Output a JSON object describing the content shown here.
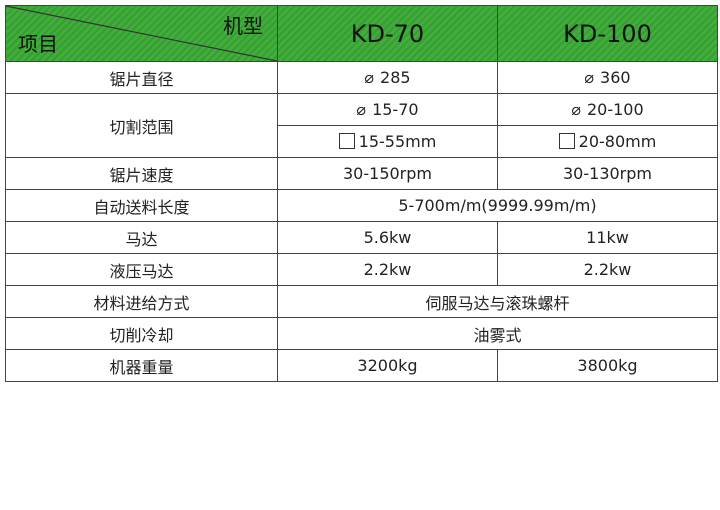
{
  "header": {
    "item_label": "项目",
    "model_label": "机型",
    "models": [
      "KD-70",
      "KD-100"
    ]
  },
  "colors": {
    "header_bg": "#3fae3a"
  },
  "rows": {
    "blade_diameter": {
      "label": "锯片直径",
      "values": [
        "285",
        "360"
      ]
    },
    "cutting_range": {
      "label": "切割范围",
      "round": [
        "15-70",
        "20-100"
      ],
      "square": [
        "15-55mm",
        "20-80mm"
      ]
    },
    "blade_speed": {
      "label": "锯片速度",
      "values": [
        "30-150rpm",
        "30-130rpm"
      ]
    },
    "auto_feed_length": {
      "label": "自动送料长度",
      "value": "5-700m/m(9999.99m/m)"
    },
    "motor": {
      "label": "马达",
      "values": [
        "5.6kw",
        "11kw"
      ]
    },
    "hydraulic_motor": {
      "label": "液压马达",
      "values": [
        "2.2kw",
        "2.2kw"
      ]
    },
    "feed_method": {
      "label": "材料进给方式",
      "value": "伺服马达与滚珠螺杆"
    },
    "cooling": {
      "label": "切削冷却",
      "value": "油雾式"
    },
    "weight": {
      "label": "机器重量",
      "values": [
        "3200kg",
        "3800kg"
      ]
    }
  },
  "symbols": {
    "diameter": "⌀"
  }
}
